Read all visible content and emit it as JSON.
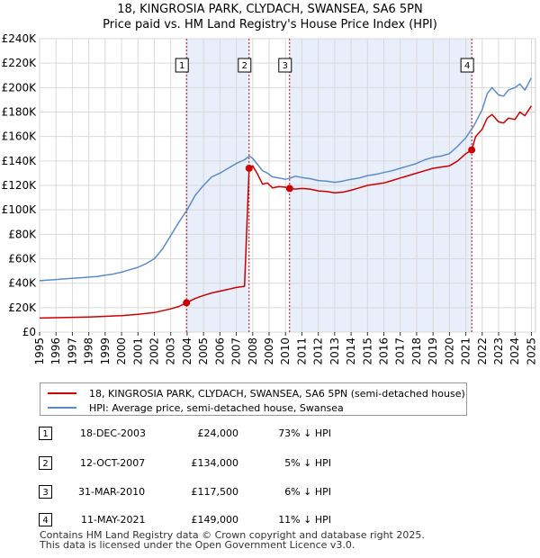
{
  "chart_data": {
    "type": "line",
    "title": "18, KINGROSIA PARK, CLYDACH, SWANSEA, SA6 5PN",
    "subtitle": "Price paid vs. HM Land Registry's House Price Index (HPI)",
    "xlabel": "",
    "ylabel": "",
    "xlim": [
      1995,
      2025.25
    ],
    "ylim": [
      0,
      240000
    ],
    "grid": true,
    "x_ticks": [
      "1995",
      "1996",
      "1997",
      "1998",
      "1999",
      "2000",
      "2001",
      "2002",
      "2003",
      "2004",
      "2005",
      "2006",
      "2007",
      "2008",
      "2009",
      "2010",
      "2011",
      "2012",
      "2013",
      "2014",
      "2015",
      "2016",
      "2017",
      "2018",
      "2019",
      "2020",
      "2021",
      "2022",
      "2023",
      "2024",
      "2025"
    ],
    "y_ticks": [
      "£0",
      "£20K",
      "£40K",
      "£60K",
      "£80K",
      "£100K",
      "£120K",
      "£140K",
      "£160K",
      "£180K",
      "£200K",
      "£220K",
      "£240K"
    ],
    "y_tick_values": [
      0,
      20000,
      40000,
      60000,
      80000,
      100000,
      120000,
      140000,
      160000,
      180000,
      200000,
      220000,
      240000
    ],
    "series": [
      {
        "name": "18, KINGROSIA PARK, CLYDACH, SWANSEA, SA6 5PN (semi-detached house)",
        "color": "#cc0000",
        "x": [
          1995.0,
          1996.0,
          1997.0,
          1998.0,
          1999.0,
          2000.0,
          2001.0,
          2002.0,
          2003.0,
          2003.5,
          2003.96,
          2004.5,
          2005.0,
          2005.5,
          2006.0,
          2006.5,
          2007.0,
          2007.5,
          2007.78,
          2008.0,
          2008.3,
          2008.6,
          2008.9,
          2009.2,
          2009.6,
          2010.0,
          2010.25,
          2010.6,
          2011.0,
          2011.5,
          2012.0,
          2012.5,
          2013.0,
          2013.5,
          2014.0,
          2014.5,
          2015.0,
          2015.5,
          2016.0,
          2016.5,
          2017.0,
          2017.5,
          2018.0,
          2018.5,
          2019.0,
          2019.5,
          2020.0,
          2020.5,
          2021.0,
          2021.36,
          2021.6,
          2022.0,
          2022.3,
          2022.6,
          2023.0,
          2023.3,
          2023.6,
          2024.0,
          2024.3,
          2024.6,
          2025.0
        ],
        "y": [
          11500,
          11800,
          12100,
          12400,
          12900,
          13500,
          14500,
          16000,
          19000,
          21000,
          24000,
          27500,
          30000,
          32000,
          33500,
          35000,
          36500,
          37500,
          134000,
          136000,
          129000,
          121000,
          122000,
          118000,
          119000,
          118500,
          117500,
          117000,
          117500,
          117000,
          115500,
          115000,
          114000,
          114500,
          116000,
          118000,
          120000,
          121000,
          122000,
          124000,
          126000,
          128000,
          130000,
          132000,
          134000,
          135000,
          136000,
          140000,
          146000,
          149000,
          160000,
          166000,
          175000,
          178000,
          172000,
          171000,
          175000,
          174000,
          180000,
          177000,
          185000
        ]
      },
      {
        "name": "HPI: Average price, semi-detached house, Swansea",
        "color": "#5b8cc8",
        "x": [
          1995.0,
          1995.5,
          1996.0,
          1996.5,
          1997.0,
          1997.5,
          1998.0,
          1998.5,
          1999.0,
          1999.5,
          2000.0,
          2000.5,
          2001.0,
          2001.5,
          2002.0,
          2002.5,
          2003.0,
          2003.5,
          2004.0,
          2004.5,
          2005.0,
          2005.5,
          2006.0,
          2006.5,
          2007.0,
          2007.5,
          2007.8,
          2008.0,
          2008.3,
          2008.6,
          2008.9,
          2009.2,
          2009.6,
          2010.0,
          2010.3,
          2010.6,
          2011.0,
          2011.5,
          2012.0,
          2012.5,
          2013.0,
          2013.5,
          2014.0,
          2014.5,
          2015.0,
          2015.5,
          2016.0,
          2016.5,
          2017.0,
          2017.5,
          2018.0,
          2018.5,
          2019.0,
          2019.5,
          2020.0,
          2020.5,
          2021.0,
          2021.5,
          2022.0,
          2022.3,
          2022.6,
          2023.0,
          2023.3,
          2023.6,
          2024.0,
          2024.3,
          2024.6,
          2025.0
        ],
        "y": [
          42000,
          42500,
          43000,
          43500,
          44000,
          44500,
          45000,
          45500,
          46500,
          47500,
          49000,
          51000,
          53000,
          56000,
          60000,
          68000,
          79000,
          90000,
          100000,
          112000,
          120000,
          127000,
          130000,
          134000,
          138000,
          141000,
          144000,
          142000,
          137000,
          132000,
          130000,
          127000,
          126000,
          125000,
          126000,
          127500,
          126500,
          125500,
          124000,
          123500,
          122500,
          123500,
          125000,
          126000,
          128000,
          129000,
          130500,
          132000,
          134000,
          136000,
          138000,
          141000,
          143000,
          144000,
          146000,
          152000,
          159000,
          169000,
          182000,
          195000,
          200000,
          194000,
          193000,
          198000,
          200000,
          203000,
          198000,
          208000
        ]
      }
    ],
    "sales": [
      {
        "id": "1",
        "x": 2003.96,
        "y": 24000
      },
      {
        "id": "2",
        "x": 2007.78,
        "y": 134000
      },
      {
        "id": "3",
        "x": 2010.25,
        "y": 117500
      },
      {
        "id": "4",
        "x": 2021.36,
        "y": 149000
      }
    ],
    "shaded_spans": [
      [
        2003.96,
        2007.78
      ],
      [
        2010.25,
        2021.36
      ]
    ]
  },
  "legend": {
    "property_label": "18, KINGROSIA PARK, CLYDACH, SWANSEA, SA6 5PN (semi-detached house)",
    "hpi_label": "HPI: Average price, semi-detached house, Swansea"
  },
  "transactions": [
    {
      "id": "1",
      "date": "18-DEC-2003",
      "price": "£24,000",
      "diff": "73% ↓ HPI"
    },
    {
      "id": "2",
      "date": "12-OCT-2007",
      "price": "£134,000",
      "diff": "5% ↓ HPI"
    },
    {
      "id": "3",
      "date": "31-MAR-2010",
      "price": "£117,500",
      "diff": "6% ↓ HPI"
    },
    {
      "id": "4",
      "date": "11-MAY-2021",
      "price": "£149,000",
      "diff": "11% ↓ HPI"
    }
  ],
  "footer": {
    "line1": "Contains HM Land Registry data © Crown copyright and database right 2025.",
    "line2": "This data is licensed under the Open Government Licence v3.0."
  },
  "colors": {
    "property": "#cc0000",
    "hpi": "#5b8cc8",
    "shade": "#e8eefa",
    "marker_line": "#cc0000"
  }
}
